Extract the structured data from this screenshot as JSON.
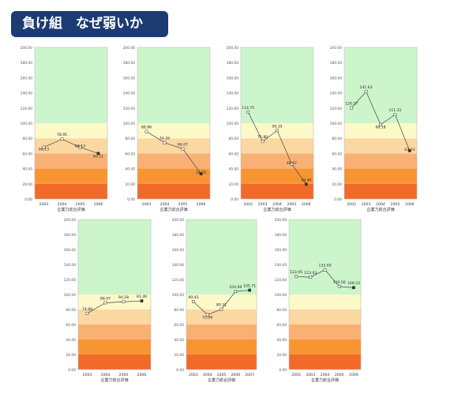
{
  "header": {
    "title": "負け組　なぜ弱いか"
  },
  "bands": [
    {
      "from": 0,
      "to": 20,
      "color": "#f26a2a"
    },
    {
      "from": 20,
      "to": 40,
      "color": "#f89533"
    },
    {
      "from": 40,
      "to": 60,
      "color": "#f9b074"
    },
    {
      "from": 60,
      "to": 80,
      "color": "#fbd7a1"
    },
    {
      "from": 80,
      "to": 100,
      "color": "#fdf8c8"
    },
    {
      "from": 100,
      "to": 200,
      "color": "#cdf5cb"
    }
  ],
  "chart_data": [
    {
      "type": "line",
      "xlabel": "企業力総合評価",
      "ylim": [
        0,
        200
      ],
      "yticks": [
        "0.00",
        "20.00",
        "40.00",
        "60.00",
        "80.00",
        "100.00",
        "120.00",
        "140.00",
        "160.00",
        "180.00",
        "200.00"
      ],
      "x": [
        "2003",
        "2004",
        "2005",
        "2006"
      ],
      "values": [
        68.13,
        78.95,
        68.13,
        60.11
      ],
      "labels": [
        "68.13",
        "78.95",
        "68.13",
        "60.11"
      ]
    },
    {
      "type": "line",
      "xlabel": "企業力総合評価",
      "ylim": [
        0,
        200
      ],
      "yticks": [
        "0.00",
        "20.00",
        "40.00",
        "60.00",
        "80.00",
        "100.00",
        "120.00",
        "140.00",
        "160.00",
        "180.00",
        "200.00"
      ],
      "x": [
        "2003",
        "2004",
        "2005",
        "2006"
      ],
      "values": [
        88.96,
        74.26,
        66.07,
        33.25
      ],
      "labels": [
        "88.96",
        "74.26",
        "66.07",
        "33.25"
      ]
    },
    {
      "type": "line",
      "xlabel": "企業力総合評価",
      "ylim": [
        0,
        200
      ],
      "yticks": [
        "0.00",
        "20.00",
        "40.00",
        "60.00",
        "80.00",
        "100.00",
        "120.00",
        "140.00",
        "160.00",
        "180.00",
        "200.00"
      ],
      "x": [
        "2002",
        "2003",
        "2004",
        "2005",
        "2006"
      ],
      "values": [
        114.75,
        75.8,
        90.35,
        46.07,
        19.4
      ],
      "labels": [
        "114.75",
        "75.80",
        "90.35",
        "46.07",
        "19.40"
      ]
    },
    {
      "type": "line",
      "xlabel": "企業力総合評価",
      "ylim": [
        0,
        200
      ],
      "yticks": [
        "0.00",
        "20.00",
        "40.00",
        "60.00",
        "80.00",
        "100.00",
        "120.00",
        "140.00",
        "160.00",
        "180.00",
        "200.00"
      ],
      "x": [
        "2002",
        "2003",
        "2004",
        "2005",
        "2006"
      ],
      "values": [
        120.17,
        141.63,
        98.18,
        111.31,
        63.73
      ],
      "labels": [
        "120.17",
        "141.63",
        "98.18",
        "111.31",
        "63.73"
      ]
    },
    {
      "type": "line",
      "xlabel": "企業力総合評価",
      "ylim": [
        0,
        200
      ],
      "yticks": [
        "0.00",
        "20.00",
        "40.00",
        "60.00",
        "80.00",
        "100.00",
        "120.00",
        "140.00",
        "160.00",
        "180.00",
        "200.00"
      ],
      "x": [
        "2003",
        "2004",
        "2005",
        "2006"
      ],
      "values": [
        74.89,
        88.97,
        90.28,
        91.49
      ],
      "labels": [
        "74.89",
        "88.97",
        "90.28",
        "91.49"
      ]
    },
    {
      "type": "line",
      "xlabel": "企業力総合評価",
      "ylim": [
        0,
        200
      ],
      "yticks": [
        "0.00",
        "20.00",
        "40.00",
        "60.00",
        "80.00",
        "100.00",
        "120.00",
        "140.00",
        "160.00",
        "180.00",
        "200.00"
      ],
      "x": [
        "2003",
        "2004",
        "2005",
        "2006",
        "2007"
      ],
      "values": [
        90.43,
        73.06,
        80.31,
        104.09,
        105.71
      ],
      "labels": [
        "90.43",
        "73.06",
        "80.31",
        "104.09",
        "105.71"
      ]
    },
    {
      "type": "line",
      "xlabel": "企業力総合評価",
      "ylim": [
        0,
        200
      ],
      "yticks": [
        "0.00",
        "20.00",
        "40.00",
        "60.00",
        "80.00",
        "100.00",
        "120.00",
        "140.00",
        "160.00",
        "180.00",
        "200.00"
      ],
      "x": [
        "2002",
        "2003",
        "2004",
        "2005",
        "2006"
      ],
      "values": [
        123.95,
        123.03,
        133.0,
        110.56,
        109.23
      ],
      "labels": [
        "123.95",
        "123.03",
        "133.00",
        "110.56",
        "109.23"
      ]
    }
  ]
}
